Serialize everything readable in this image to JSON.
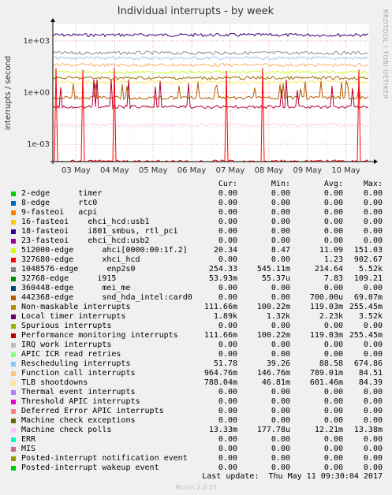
{
  "chart_data": {
    "type": "line",
    "title": "Individual interrupts - by week",
    "ylabel": "interrupts / second",
    "xlabel": "",
    "yscale": "log",
    "ylim": [
      0.0001,
      10000
    ],
    "yticks": [
      "1e+03",
      "1e+00",
      "1e-03"
    ],
    "ytick_values": [
      1000,
      1,
      0.001
    ],
    "x_ticks": [
      "03 May",
      "04 May",
      "05 May",
      "06 May",
      "07 May",
      "08 May",
      "09 May",
      "10 May"
    ],
    "grid": true,
    "series": [
      {
        "name": "Local timer interrupts",
        "color": "#3d0079",
        "approx_level": 2200
      },
      {
        "name": "Function call interrupts",
        "color": "#a3cbf1",
        "approx_level": 100
      },
      {
        "name": "1048576-edge enp2s0",
        "color": "#8d8d8d",
        "approx_level": 200
      },
      {
        "name": "Rescheduling interrupts",
        "color": "#ffb068",
        "approx_level": 40
      },
      {
        "name": "TLB shootdowns",
        "color": "#ffe66a",
        "approx_level": 4
      },
      {
        "name": "512000-edge ahci[0000:00:1f.2]",
        "color": "#ccff33",
        "approx_level": 15
      },
      {
        "name": "32768-edge i915",
        "color": "#a06b00",
        "approx_level": 7
      },
      {
        "name": "Non-maskable interrupts",
        "color": "#b35900",
        "approx_level": 0.5
      },
      {
        "name": "Performance monitoring interrupts",
        "color": "#b3002d",
        "approx_level": 0.15
      },
      {
        "name": "Machine check polls",
        "color": "#ffccee",
        "approx_level": 0.0133
      },
      {
        "name": "327680-edge xhci_hcd",
        "color": "#ff0000",
        "approx_level": 0.0001
      }
    ]
  },
  "side_label": "RRDTOOL / TOBI OETIKER",
  "legend": {
    "headers": {
      "cur": "Cur:",
      "min": "Min:",
      "avg": "Avg:",
      "max": "Max:"
    },
    "rows": [
      {
        "name": "2-edge      timer",
        "color": "#00cc00",
        "cur": "0.00",
        "min": "0.00",
        "avg": "0.00",
        "max": "0.00"
      },
      {
        "name": "8-edge      rtc0",
        "color": "#0066b3",
        "cur": "0.00",
        "min": "0.00",
        "avg": "0.00",
        "max": "0.00"
      },
      {
        "name": "9-fasteoi   acpi",
        "color": "#ff8000",
        "cur": "0.00",
        "min": "0.00",
        "avg": "0.00",
        "max": "0.00"
      },
      {
        "name": "16-fasteoi    ehci_hcd:usb1",
        "color": "#ffcc00",
        "cur": "0.00",
        "min": "0.00",
        "avg": "0.00",
        "max": "0.00"
      },
      {
        "name": "18-fasteoi    i801_smbus, rtl_pci",
        "color": "#330099",
        "cur": "0.00",
        "min": "0.00",
        "avg": "0.00",
        "max": "0.00"
      },
      {
        "name": "23-fasteoi    ehci_hcd:usb2",
        "color": "#990099",
        "cur": "0.00",
        "min": "0.00",
        "avg": "0.00",
        "max": "0.00"
      },
      {
        "name": "512000-edge      ahci[0000:00:1f.2]",
        "color": "#ccff00",
        "cur": "20.34",
        "min": "8.47",
        "avg": "11.09",
        "max": "151.03"
      },
      {
        "name": "327680-edge      xhci_hcd",
        "color": "#ff0000",
        "cur": "0.00",
        "min": "0.00",
        "avg": "1.23",
        "max": "902.67"
      },
      {
        "name": "1048576-edge      enp2s0",
        "color": "#808080",
        "cur": "254.33",
        "min": "545.11m",
        "avg": "214.64",
        "max": "5.52k"
      },
      {
        "name": "32768-edge      i915",
        "color": "#008f00",
        "cur": "53.93m",
        "min": "55.37u",
        "avg": "7.83",
        "max": "109.21"
      },
      {
        "name": "360448-edge      mei_me",
        "color": "#00487d",
        "cur": "0.00",
        "min": "0.00",
        "avg": "0.00",
        "max": "0.00"
      },
      {
        "name": "442368-edge      snd_hda_intel:card0",
        "color": "#b35a00",
        "cur": "0.00",
        "min": "0.00",
        "avg": "700.00u",
        "max": "69.07m"
      },
      {
        "name": "Non-maskable interrupts",
        "color": "#b38f00",
        "cur": "111.66m",
        "min": "100.22m",
        "avg": "119.03m",
        "max": "255.45m"
      },
      {
        "name": "Local timer interrupts",
        "color": "#6b006b",
        "cur": "1.89k",
        "min": "1.32k",
        "avg": "2.23k",
        "max": "3.52k"
      },
      {
        "name": "Spurious interrupts",
        "color": "#8fb300",
        "cur": "0.00",
        "min": "0.00",
        "avg": "0.00",
        "max": "0.00"
      },
      {
        "name": "Performance monitoring interrupts",
        "color": "#b30000",
        "cur": "111.66m",
        "min": "100.22m",
        "avg": "119.03m",
        "max": "255.45m"
      },
      {
        "name": "IRQ work interrupts",
        "color": "#bebebe",
        "cur": "0.00",
        "min": "0.00",
        "avg": "0.00",
        "max": "0.00"
      },
      {
        "name": "APIC ICR read retries",
        "color": "#80ff80",
        "cur": "0.00",
        "min": "0.00",
        "avg": "0.00",
        "max": "0.00"
      },
      {
        "name": "Rescheduling interrupts",
        "color": "#80c9ff",
        "cur": "51.78",
        "min": "39.26",
        "avg": "88.58",
        "max": "674.86"
      },
      {
        "name": "Function call interrupts",
        "color": "#ffc080",
        "cur": "964.76m",
        "min": "146.76m",
        "avg": "789.01m",
        "max": "84.51"
      },
      {
        "name": "TLB shootdowns",
        "color": "#ffe680",
        "cur": "788.04m",
        "min": "46.81m",
        "avg": "601.46m",
        "max": "84.39"
      },
      {
        "name": "Thermal event interrupts",
        "color": "#aa80ff",
        "cur": "0.00",
        "min": "0.00",
        "avg": "0.00",
        "max": "0.00"
      },
      {
        "name": "Threshold APIC interrupts",
        "color": "#ee00cc",
        "cur": "0.00",
        "min": "0.00",
        "avg": "0.00",
        "max": "0.00"
      },
      {
        "name": "Deferred Error APIC interrupts",
        "color": "#ff8080",
        "cur": "0.00",
        "min": "0.00",
        "avg": "0.00",
        "max": "0.00"
      },
      {
        "name": "Machine check exceptions",
        "color": "#666600",
        "cur": "0.00",
        "min": "0.00",
        "avg": "0.00",
        "max": "0.00"
      },
      {
        "name": "Machine check polls",
        "color": "#ffbfff",
        "cur": "13.33m",
        "min": "177.78u",
        "avg": "12.21m",
        "max": "13.38m"
      },
      {
        "name": "ERR",
        "color": "#00ffcc",
        "cur": "0.00",
        "min": "0.00",
        "avg": "0.00",
        "max": "0.00"
      },
      {
        "name": "MIS",
        "color": "#cc6699",
        "cur": "0.00",
        "min": "0.00",
        "avg": "0.00",
        "max": "0.00"
      },
      {
        "name": "Posted-interrupt notification event",
        "color": "#999900",
        "cur": "0.00",
        "min": "0.00",
        "avg": "0.00",
        "max": "0.00"
      },
      {
        "name": "Posted-interrupt wakeup event",
        "color": "#00cc00",
        "cur": "0.00",
        "min": "0.00",
        "avg": "0.00",
        "max": "0.00"
      }
    ]
  },
  "footer": {
    "last_update": "Last update:  Thu May 11 09:30:04 2017",
    "munin": "Munin 2.0.33"
  }
}
